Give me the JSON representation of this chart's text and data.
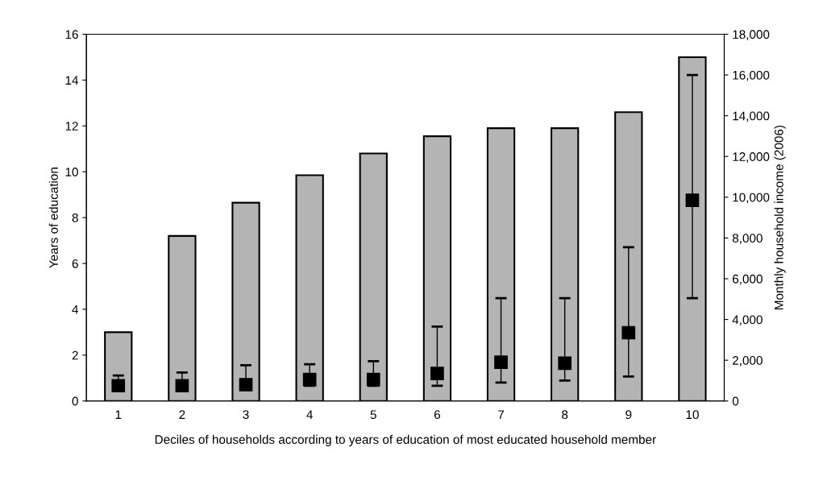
{
  "chart_data": {
    "type": "bar",
    "xlabel": "Deciles of households according to years of education of most educated household member",
    "ylabel": "Years of education",
    "y2label": "Monthly household income (2006)",
    "categories": [
      "1",
      "2",
      "3",
      "4",
      "5",
      "6",
      "7",
      "8",
      "9",
      "10"
    ],
    "series": [
      {
        "color": "#b4b4b4",
        "values": [
          3.0,
          7.2,
          8.65,
          9.85,
          10.8,
          11.55,
          11.9,
          11.9,
          12.6,
          15.0
        ]
      },
      {
        "type": "scatter",
        "axis": "y2",
        "color": "#000000",
        "values": [
          750,
          750,
          800,
          1050,
          1050,
          1350,
          1900,
          1850,
          3350,
          9850
        ],
        "errors": [
          [
            750,
            1250
          ],
          [
            750,
            1400
          ],
          [
            800,
            1750
          ],
          [
            750,
            1800
          ],
          [
            750,
            1950
          ],
          [
            750,
            3650
          ],
          [
            900,
            5050
          ],
          [
            1000,
            5050
          ],
          [
            1200,
            7550
          ],
          [
            5050,
            16000
          ]
        ]
      }
    ],
    "ylim": [
      0,
      16
    ],
    "yticks": [
      0,
      2,
      4,
      6,
      8,
      10,
      12,
      14,
      16
    ],
    "y2lim": [
      0,
      18000
    ],
    "y2ticks": [
      {
        "value": 0,
        "label": "0"
      },
      {
        "value": 2000,
        "label": "2,000"
      },
      {
        "value": 4000,
        "label": "4,000"
      },
      {
        "value": 6000,
        "label": "6,000"
      },
      {
        "value": 8000,
        "label": "8,000"
      },
      {
        "value": 10000,
        "label": "10,000"
      },
      {
        "value": 12000,
        "label": "12,000"
      },
      {
        "value": 14000,
        "label": "14,000"
      },
      {
        "value": 16000,
        "label": "16,000"
      },
      {
        "value": 18000,
        "label": "18,000"
      }
    ],
    "marker": "square",
    "grid": false,
    "legend": false
  }
}
